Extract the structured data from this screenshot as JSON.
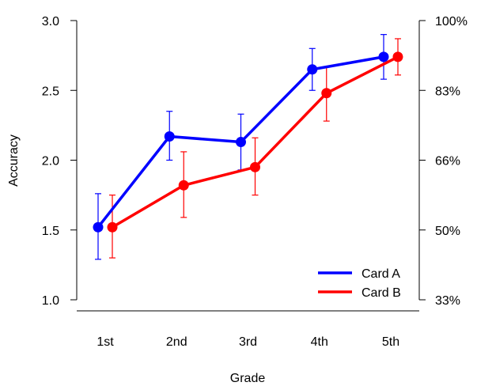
{
  "chart_data": {
    "type": "line",
    "xlabel": "Grade",
    "ylabel": "Accuracy",
    "categories": [
      "1st",
      "2nd",
      "3rd",
      "4th",
      "5th"
    ],
    "ylim": [
      1.0,
      3.0
    ],
    "yticks": [
      "1.0",
      "1.5",
      "2.0",
      "2.5",
      "3.0"
    ],
    "ytick_values": [
      1.0,
      1.5,
      2.0,
      2.5,
      3.0
    ],
    "y2ticks": [
      "33%",
      "50%",
      "66%",
      "83%",
      "100%"
    ],
    "y2tick_values": [
      1.0,
      1.5,
      2.0,
      2.5,
      3.0
    ],
    "grid": false,
    "legend_position": "bottom-right",
    "series": [
      {
        "name": "Card A",
        "color": "#0000ff",
        "values": [
          1.52,
          2.17,
          2.13,
          2.65,
          2.74
        ],
        "err_low": [
          1.29,
          2.0,
          1.93,
          2.5,
          2.58
        ],
        "err_high": [
          1.76,
          2.35,
          2.33,
          2.8,
          2.9
        ]
      },
      {
        "name": "Card B",
        "color": "#ff0000",
        "values": [
          1.52,
          1.82,
          1.95,
          2.48,
          2.74
        ],
        "err_low": [
          1.3,
          1.59,
          1.75,
          2.28,
          2.61
        ],
        "err_high": [
          1.75,
          2.06,
          2.16,
          2.67,
          2.87
        ]
      }
    ]
  }
}
